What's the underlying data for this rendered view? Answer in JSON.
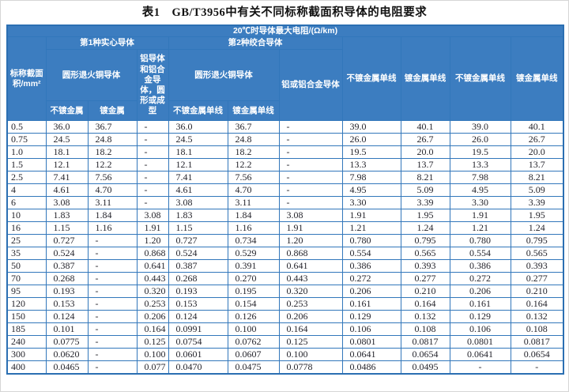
{
  "doc": {
    "title": "表1　GB/T3956中有关不同标称截面积导体的电阻要求"
  },
  "colors": {
    "header_bg": "#3c7dc0",
    "table_border": "#2b6fb2",
    "cell_border": "#3277bb",
    "header_text": "#ffffff",
    "data_text": "#24242c"
  },
  "table": {
    "header": {
      "top": "20℃时导体最大电阻/(Ω/km)",
      "area": "标称截面积/mm²",
      "group1": "第1种实心导体",
      "group2": "第2种绞合导体",
      "g1_copper": "圆形退火铜导体",
      "g1_copper_plain": "不镀金属",
      "g1_copper_plated": "镀金属",
      "g1_alu": "铝导体和铝合金导体，圆形或成型",
      "g2_copper": "圆形退火铜导体",
      "g2_copper_plain": "不镀金属单线",
      "g2_copper_plated": "镀金属单线",
      "g2_alu": "铝或铝合金导体",
      "col8": "不镀金属单线",
      "col9": "镀金属单线",
      "col10": "不镀金属单线",
      "col11": "镀金属单线"
    },
    "rows": [
      [
        "0.5",
        "36.0",
        "36.7",
        "-",
        "36.0",
        "36.7",
        "-",
        "39.0",
        "40.1",
        "39.0",
        "40.1"
      ],
      [
        "0.75",
        "24.5",
        "24.8",
        "-",
        "24.5",
        "24.8",
        "-",
        "26.0",
        "26.7",
        "26.0",
        "26.7"
      ],
      [
        "1.0",
        "18.1",
        "18.2",
        "-",
        "18.1",
        "18.2",
        "-",
        "19.5",
        "20.0",
        "19.5",
        "20.0"
      ],
      [
        "1.5",
        "12.1",
        "12.2",
        "-",
        "12.1",
        "12.2",
        "-",
        "13.3",
        "13.7",
        "13.3",
        "13.7"
      ],
      [
        "2.5",
        "7.41",
        "7.56",
        "-",
        "7.41",
        "7.56",
        "-",
        "7.98",
        "8.21",
        "7.98",
        "8.21"
      ],
      [
        "4",
        "4.61",
        "4.70",
        "-",
        "4.61",
        "4.70",
        "-",
        "4.95",
        "5.09",
        "4.95",
        "5.09"
      ],
      [
        "6",
        "3.08",
        "3.11",
        "-",
        "3.08",
        "3.11",
        "-",
        "3.30",
        "3.39",
        "3.30",
        "3.39"
      ],
      [
        "10",
        "1.83",
        "1.84",
        "3.08",
        "1.83",
        "1.84",
        "3.08",
        "1.91",
        "1.95",
        "1.91",
        "1.95"
      ],
      [
        "16",
        "1.15",
        "1.16",
        "1.91",
        "1.15",
        "1.16",
        "1.91",
        "1.21",
        "1.24",
        "1.21",
        "1.24"
      ],
      [
        "25",
        "0.727",
        "-",
        "1.20",
        "0.727",
        "0.734",
        "1.20",
        "0.780",
        "0.795",
        "0.780",
        "0.795"
      ],
      [
        "35",
        "0.524",
        "-",
        "0.868",
        "0.524",
        "0.529",
        "0.868",
        "0.554",
        "0.565",
        "0.554",
        "0.565"
      ],
      [
        "50",
        "0.387",
        "-",
        "0.641",
        "0.387",
        "0.391",
        "0.641",
        "0.386",
        "0.393",
        "0.386",
        "0.393"
      ],
      [
        "70",
        "0.268",
        "-",
        "0.443",
        "0.268",
        "0.270",
        "0.443",
        "0.272",
        "0.277",
        "0.272",
        "0.277"
      ],
      [
        "95",
        "0.193",
        "-",
        "0.320",
        "0.193",
        "0.195",
        "0.320",
        "0.206",
        "0.210",
        "0.206",
        "0.210"
      ],
      [
        "120",
        "0.153",
        "-",
        "0.253",
        "0.153",
        "0.154",
        "0.253",
        "0.161",
        "0.164",
        "0.161",
        "0.164"
      ],
      [
        "150",
        "0.124",
        "-",
        "0.206",
        "0.124",
        "0.126",
        "0.206",
        "0.129",
        "0.132",
        "0.129",
        "0.132"
      ],
      [
        "185",
        "0.101",
        "-",
        "0.164",
        "0.0991",
        "0.100",
        "0.164",
        "0.106",
        "0.108",
        "0.106",
        "0.108"
      ],
      [
        "240",
        "0.0775",
        "-",
        "0.125",
        "0.0754",
        "0.0762",
        "0.125",
        "0.0801",
        "0.0817",
        "0.0801",
        "0.0817"
      ],
      [
        "300",
        "0.0620",
        "-",
        "0.100",
        "0.0601",
        "0.0607",
        "0.100",
        "0.0641",
        "0.0654",
        "0.0641",
        "0.0654"
      ],
      [
        "400",
        "0.0465",
        "-",
        "0.077",
        "0.0470",
        "0.0475",
        "0.0778",
        "0.0486",
        "0.0495",
        "-",
        "-"
      ]
    ]
  }
}
